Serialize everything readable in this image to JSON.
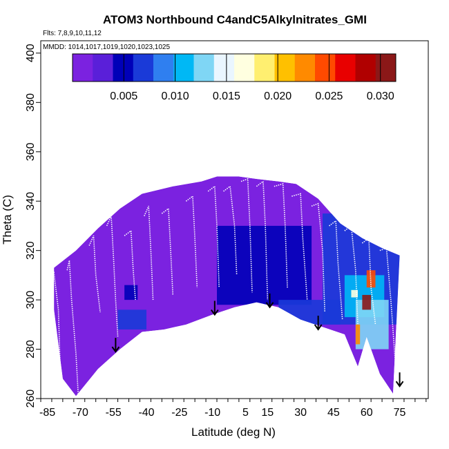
{
  "chart_data": {
    "type": "heatmap",
    "title": "ATOM3 Northbound C4andC5Alkylnitrates_GMI",
    "flights_label": "Flts: 7,8,9,10,11,12",
    "dates_label": "MMDD: 1014,1017,1019,1020,1023,1025",
    "xlabel": "Latitude (deg N)",
    "ylabel": "Theta (C)",
    "xlim": [
      -88,
      88
    ],
    "ylim": [
      260,
      405
    ],
    "x_ticks": [
      -85,
      -70,
      -55,
      -40,
      -25,
      -10,
      5,
      15,
      30,
      45,
      60,
      75
    ],
    "y_ticks": [
      260,
      280,
      300,
      320,
      340,
      360,
      380,
      400
    ],
    "colorbar": {
      "range": [
        0,
        0.0315
      ],
      "ticks": [
        0.005,
        0.01,
        0.015,
        0.02,
        0.025,
        0.03
      ],
      "tick_labels": [
        "0.005",
        "0.010",
        "0.015",
        "0.020",
        "0.025",
        "0.030"
      ],
      "colors": [
        "#7b22e0",
        "#5a1fd9",
        "#0000b8",
        "#1a3ad8",
        "#2f7ff0",
        "#00b8f5",
        "#7fd6f5",
        "#eaf6ff",
        "#ffffe0",
        "#ffef70",
        "#ffc000",
        "#ff8a00",
        "#ff4a00",
        "#e80000",
        "#b00000",
        "#8b1818"
      ]
    },
    "domain_top": [
      [
        -82,
        313
      ],
      [
        -72,
        320
      ],
      [
        -62,
        329
      ],
      [
        -52,
        337
      ],
      [
        -42,
        343
      ],
      [
        -28,
        346
      ],
      [
        -15,
        348
      ],
      [
        -8,
        350
      ],
      [
        2,
        350
      ],
      [
        10,
        349
      ],
      [
        20,
        348
      ],
      [
        28,
        347
      ],
      [
        38,
        341
      ],
      [
        48,
        331
      ],
      [
        58,
        325
      ],
      [
        67,
        321
      ],
      [
        75,
        318
      ]
    ],
    "domain_bottom": [
      [
        -82,
        296
      ],
      [
        -78,
        268
      ],
      [
        -72,
        261
      ],
      [
        -62,
        272
      ],
      [
        -52,
        280
      ],
      [
        -42,
        287
      ],
      [
        -32,
        288
      ],
      [
        -22,
        290
      ],
      [
        -10,
        294
      ],
      [
        0,
        297
      ],
      [
        10,
        299
      ],
      [
        20,
        297
      ],
      [
        30,
        292
      ],
      [
        40,
        289
      ],
      [
        50,
        286
      ],
      [
        56,
        273
      ],
      [
        60,
        285
      ],
      [
        66,
        270
      ],
      [
        72,
        262
      ]
    ],
    "patches": [
      {
        "lat": [
          -50,
          -44
        ],
        "theta": [
          300,
          306
        ],
        "value": 0.005
      },
      {
        "lat": [
          -53,
          -40
        ],
        "theta": [
          288,
          296
        ],
        "value": 0.006
      },
      {
        "lat": [
          -8,
          35
        ],
        "theta": [
          298,
          330
        ],
        "value": 0.005
      },
      {
        "lat": [
          20,
          48
        ],
        "theta": [
          290,
          300
        ],
        "value": 0.006
      },
      {
        "lat": [
          40,
          80
        ],
        "theta": [
          290,
          335
        ],
        "value": 0.006
      },
      {
        "lat": [
          50,
          68
        ],
        "theta": [
          293,
          310
        ],
        "value": 0.01
      },
      {
        "lat": [
          55,
          70
        ],
        "theta": [
          280,
          300
        ],
        "value": 0.012
      },
      {
        "lat": [
          58,
          62
        ],
        "theta": [
          296,
          302
        ],
        "value": 0.03
      },
      {
        "lat": [
          60,
          64
        ],
        "theta": [
          305,
          312
        ],
        "value": 0.025
      },
      {
        "lat": [
          55,
          57
        ],
        "theta": [
          282,
          290
        ],
        "value": 0.022
      },
      {
        "lat": [
          53,
          56
        ],
        "theta": [
          301,
          304
        ],
        "value": 0.016
      }
    ],
    "arrows": [
      {
        "lat": -54,
        "theta": 279
      },
      {
        "lat": -9,
        "theta": 294
      },
      {
        "lat": 16,
        "theta": 297
      },
      {
        "lat": 38,
        "theta": 288
      },
      {
        "lat": 75,
        "theta": 265
      }
    ],
    "flight_tracks": [
      [
        [
          -84,
          309
        ],
        [
          -82,
          311
        ],
        [
          -80,
          296
        ],
        [
          -79,
          268
        ],
        [
          -78,
          261
        ]
      ],
      [
        [
          -76,
          312
        ],
        [
          -75,
          316
        ],
        [
          -74,
          300
        ],
        [
          -72,
          278
        ],
        [
          -71,
          262
        ]
      ],
      [
        [
          -66,
          322
        ],
        [
          -64,
          326
        ],
        [
          -63,
          310
        ],
        [
          -61,
          295
        ]
      ],
      [
        [
          -58,
          330
        ],
        [
          -56,
          334
        ],
        [
          -55,
          318
        ],
        [
          -54,
          300
        ],
        [
          -53,
          285
        ]
      ],
      [
        [
          -50,
          326
        ],
        [
          -47,
          328
        ],
        [
          -46,
          312
        ],
        [
          -45,
          300
        ]
      ],
      [
        [
          -41,
          334
        ],
        [
          -39,
          338
        ],
        [
          -38,
          320
        ],
        [
          -37,
          300
        ]
      ],
      [
        [
          -33,
          335
        ],
        [
          -30,
          337
        ],
        [
          -29,
          320
        ],
        [
          -28,
          302
        ]
      ],
      [
        [
          -22,
          340
        ],
        [
          -19,
          342
        ],
        [
          -18,
          325
        ],
        [
          -17,
          305
        ]
      ],
      [
        [
          -12,
          344
        ],
        [
          -9,
          346
        ],
        [
          -8,
          330
        ],
        [
          -7,
          305
        ]
      ],
      [
        [
          -5,
          344
        ],
        [
          -2,
          346
        ],
        [
          0,
          330
        ],
        [
          1,
          310
        ]
      ],
      [
        [
          3,
          348
        ],
        [
          6,
          349
        ],
        [
          7,
          330
        ],
        [
          8,
          303
        ]
      ],
      [
        [
          10,
          346
        ],
        [
          13,
          348
        ],
        [
          14,
          330
        ],
        [
          15,
          300
        ]
      ],
      [
        [
          18,
          346
        ],
        [
          22,
          347
        ],
        [
          23,
          330
        ],
        [
          24,
          305
        ]
      ],
      [
        [
          26,
          342
        ],
        [
          30,
          343
        ],
        [
          31,
          325
        ],
        [
          33,
          300
        ]
      ],
      [
        [
          35,
          338
        ],
        [
          38,
          339
        ],
        [
          40,
          320
        ],
        [
          41,
          295
        ]
      ],
      [
        [
          43,
          330
        ],
        [
          46,
          332
        ],
        [
          47,
          315
        ],
        [
          49,
          292
        ]
      ],
      [
        [
          50,
          328
        ],
        [
          53,
          330
        ],
        [
          55,
          312
        ],
        [
          56,
          290
        ]
      ],
      [
        [
          58,
          323
        ],
        [
          61,
          325
        ],
        [
          62,
          305
        ],
        [
          64,
          290
        ]
      ],
      [
        [
          66,
          320
        ],
        [
          69,
          321
        ],
        [
          71,
          300
        ],
        [
          73,
          275
        ],
        [
          75,
          262
        ]
      ]
    ]
  }
}
